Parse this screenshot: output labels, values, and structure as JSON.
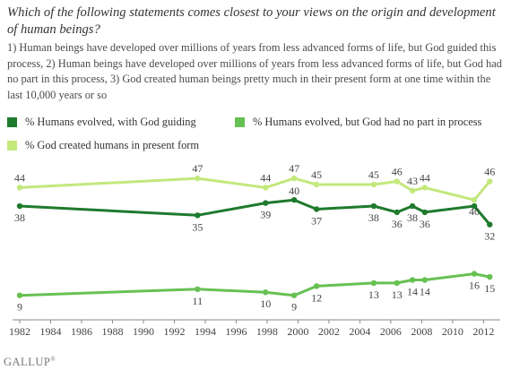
{
  "title": "Which of the following statements comes closest to your views on the origin and development of human beings?",
  "subtitle": "1) Human beings have developed over millions of years from less advanced forms of life, but God guided this process, 2) Human beings have developed over millions of years from less advanced forms of life, but God had no part in this process, 3) God created human beings pretty much in their present form at one time within the last 10,000 years or so",
  "footer": {
    "brand": "GALLUP",
    "mark": "®"
  },
  "chart_data": {
    "type": "line",
    "x": [
      1982,
      1993.5,
      1997.9,
      1999.75,
      2001.2,
      2004.9,
      2006.4,
      2007.4,
      2008.2,
      2011.4,
      2012.4
    ],
    "xticks": [
      1982,
      1984,
      1986,
      1988,
      1990,
      1992,
      1994,
      1996,
      1998,
      2000,
      2002,
      2004,
      2006,
      2008,
      2010,
      2012
    ],
    "series": [
      {
        "name": "% Humans evolved, with God guiding",
        "color": "#1e7a2d",
        "values": [
          38,
          35,
          39,
          40,
          37,
          38,
          36,
          38,
          36,
          38,
          32
        ],
        "labels": [
          38,
          35,
          39,
          40,
          37,
          38,
          36,
          38,
          36,
          null,
          32
        ]
      },
      {
        "name": "% Humans evolved, but God had no part in process",
        "color": "#66c152",
        "values": [
          9,
          11,
          10,
          9,
          12,
          13,
          13,
          14,
          14,
          16,
          15
        ],
        "labels": [
          9,
          11,
          10,
          9,
          12,
          13,
          13,
          14,
          14,
          16,
          15
        ]
      },
      {
        "name": "% God created humans in present form",
        "color": "#c3e87c",
        "values": [
          44,
          47,
          44,
          47,
          45,
          45,
          46,
          43,
          44,
          40,
          46
        ],
        "labels": [
          44,
          47,
          44,
          47,
          45,
          45,
          46,
          43,
          44,
          40,
          46
        ]
      }
    ]
  }
}
